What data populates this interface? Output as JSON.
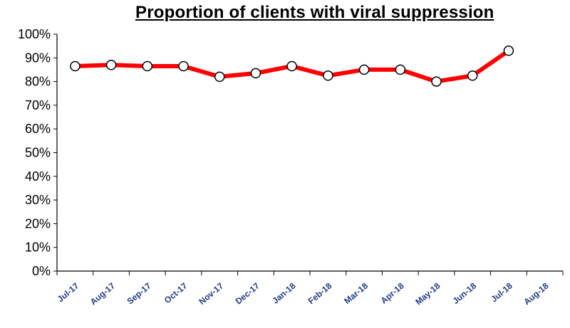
{
  "chart_data": {
    "type": "line",
    "title": "Proportion of clients with viral suppression",
    "xlabel": "",
    "ylabel": "",
    "categories": [
      "Jul-17",
      "Aug-17",
      "Sep-17",
      "Oct-17",
      "Nov-17",
      "Dec-17",
      "Jan-18",
      "Feb-18",
      "Mar-18",
      "Apr-18",
      "May-18",
      "Jun-18",
      "Jul-18",
      "Aug-18"
    ],
    "series": [
      {
        "values": [
          86.5,
          87,
          86.5,
          86.5,
          82,
          83.5,
          86.5,
          82.5,
          85,
          85,
          80,
          82.5,
          93,
          null
        ]
      }
    ],
    "ylim": [
      0,
      100
    ],
    "yticks": [
      "0%",
      "10%",
      "20%",
      "30%",
      "40%",
      "50%",
      "60%",
      "70%",
      "80%",
      "90%",
      "100%"
    ],
    "grid": false,
    "legend": "none",
    "line_color": "#ff0000",
    "marker_fill": "#ffffff",
    "marker_stroke": "#000000"
  }
}
